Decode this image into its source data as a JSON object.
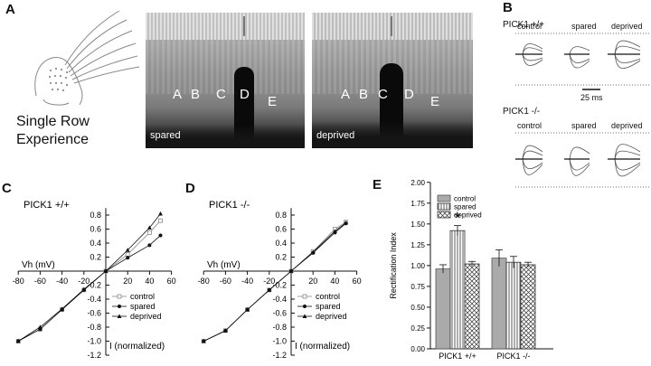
{
  "figure": {
    "panels": {
      "A": "A",
      "B": "B",
      "C": "C",
      "D": "D",
      "E": "E"
    },
    "panel_a": {
      "caption_line1": "Single Row",
      "caption_line2": "Experience",
      "spared": {
        "label": "spared",
        "barrels": [
          "A",
          "B",
          "C",
          "D",
          "E"
        ]
      },
      "deprived": {
        "label": "deprived",
        "barrels": [
          "A",
          "B",
          "C",
          "D",
          "E"
        ]
      }
    },
    "panel_b": {
      "wt_title": "PICK1 +/+",
      "ko_title": "PICK1 -/-",
      "conditions": [
        "control",
        "spared",
        "deprived"
      ],
      "scalebar": "25 ms"
    }
  },
  "chart_data": [
    {
      "type": "line",
      "panel": "C",
      "title": "PICK1 +/+",
      "xlabel": "Vh (mV)",
      "ylabel": "I (normalized)",
      "xlim": [
        -80,
        60
      ],
      "ylim": [
        -1.2,
        0.9
      ],
      "xticks": [
        "-80",
        "-60",
        "-40",
        "-20",
        "20",
        "40",
        "60"
      ],
      "yticks": [
        "0.8",
        "0.6",
        "0.4",
        "0.2",
        "-0.2",
        "-0.4",
        "-0.6",
        "-0.8",
        "-1.0",
        "-1.2"
      ],
      "x": [
        -80,
        -60,
        -40,
        -20,
        0,
        20,
        40,
        50
      ],
      "series": [
        {
          "name": "control",
          "values": [
            -1.0,
            -0.83,
            -0.55,
            -0.27,
            0.0,
            0.24,
            0.55,
            0.72
          ]
        },
        {
          "name": "spared",
          "values": [
            -1.0,
            -0.83,
            -0.55,
            -0.27,
            0.0,
            0.19,
            0.37,
            0.51
          ]
        },
        {
          "name": "deprived",
          "values": [
            -1.0,
            -0.8,
            -0.54,
            -0.26,
            0.0,
            0.3,
            0.62,
            0.82
          ]
        }
      ]
    },
    {
      "type": "line",
      "panel": "D",
      "title": "PICK1 -/-",
      "xlabel": "Vh (mV)",
      "ylabel": "I (normalized)",
      "xlim": [
        -80,
        60
      ],
      "ylim": [
        -1.2,
        0.9
      ],
      "xticks": [
        "-80",
        "-60",
        "-40",
        "-20",
        "20",
        "40",
        "60"
      ],
      "yticks": [
        "0.8",
        "0.6",
        "0.4",
        "0.2",
        "-0.2",
        "-0.4",
        "-0.6",
        "-0.8",
        "-1.0",
        "-1.2"
      ],
      "x": [
        -80,
        -60,
        -40,
        -20,
        0,
        20,
        40,
        50
      ],
      "series": [
        {
          "name": "control",
          "values": [
            -1.0,
            -0.85,
            -0.55,
            -0.27,
            0.0,
            0.28,
            0.6,
            0.7
          ]
        },
        {
          "name": "spared",
          "values": [
            -1.0,
            -0.85,
            -0.55,
            -0.27,
            0.0,
            0.26,
            0.55,
            0.68
          ]
        },
        {
          "name": "deprived",
          "values": [
            -1.0,
            -0.85,
            -0.55,
            -0.27,
            0.0,
            0.27,
            0.57,
            0.69
          ]
        }
      ]
    },
    {
      "type": "bar",
      "panel": "E",
      "ylabel": "Rectification Index",
      "ylim": [
        0,
        2.0
      ],
      "yticks": [
        "0.00",
        "0.25",
        "0.50",
        "0.75",
        "1.00",
        "1.25",
        "1.50",
        "1.75",
        "2.00"
      ],
      "categories": [
        "PICK1 +/+",
        "PICK1 -/-"
      ],
      "series": [
        {
          "name": "control",
          "values": [
            0.96,
            1.09
          ],
          "errors": [
            0.05,
            0.1
          ]
        },
        {
          "name": "spared",
          "values": [
            1.42,
            1.04
          ],
          "errors": [
            0.06,
            0.07
          ]
        },
        {
          "name": "deprived",
          "values": [
            1.02,
            1.01
          ],
          "errors": [
            0.03,
            0.03
          ]
        }
      ],
      "annotation": "*"
    }
  ]
}
